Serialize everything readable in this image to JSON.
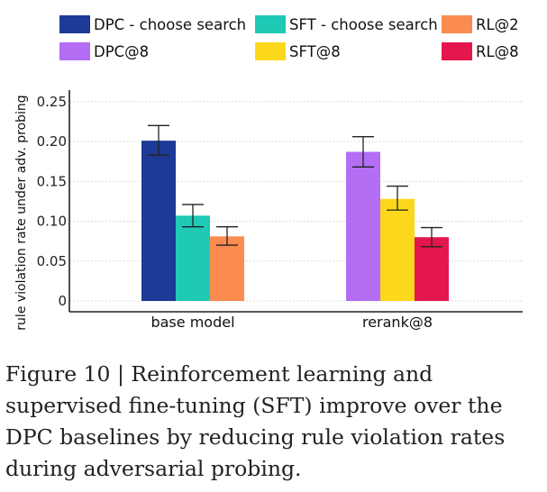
{
  "chart_data": {
    "type": "bar",
    "categories": [
      "base model",
      "rerank@8"
    ],
    "ylabel": "rule violation rate under adv. probing",
    "xlabel": "",
    "ylim": [
      0,
      0.26
    ],
    "yticks": [
      "0",
      "0.05",
      "0.10",
      "0.15",
      "0.20",
      "0.25"
    ],
    "grid": true,
    "legend_position": "top",
    "legend": [
      {
        "name": "DPC - choose search",
        "color": "#1c3a96"
      },
      {
        "name": "SFT - choose search",
        "color": "#1ec9b5"
      },
      {
        "name": "RL@2",
        "color": "#fb8c50"
      },
      {
        "name": "DPC@8",
        "color": "#b36ef4"
      },
      {
        "name": "SFT@8",
        "color": "#fcd81c"
      },
      {
        "name": "RL@8",
        "color": "#e3174e"
      }
    ],
    "groups": [
      {
        "category": "base model",
        "bars": [
          {
            "series": "DPC - choose search",
            "value": 0.201,
            "err_low": 0.183,
            "err_high": 0.22,
            "color": "#1c3a96"
          },
          {
            "series": "SFT - choose search",
            "value": 0.107,
            "err_low": 0.093,
            "err_high": 0.121,
            "color": "#1ec9b5"
          },
          {
            "series": "RL@2",
            "value": 0.081,
            "err_low": 0.07,
            "err_high": 0.093,
            "color": "#fb8c50"
          }
        ]
      },
      {
        "category": "rerank@8",
        "bars": [
          {
            "series": "DPC@8",
            "value": 0.187,
            "err_low": 0.168,
            "err_high": 0.206,
            "color": "#b36ef4"
          },
          {
            "series": "SFT@8",
            "value": 0.128,
            "err_low": 0.114,
            "err_high": 0.144,
            "color": "#fcd81c"
          },
          {
            "series": "RL@8",
            "value": 0.08,
            "err_low": 0.068,
            "err_high": 0.092,
            "color": "#e3174e"
          }
        ]
      }
    ]
  },
  "caption": "Figure 10 | Reinforcement learning and supervised fine-tuning (SFT) improve over the DPC baselines by reducing rule violation rates during adversarial probing."
}
